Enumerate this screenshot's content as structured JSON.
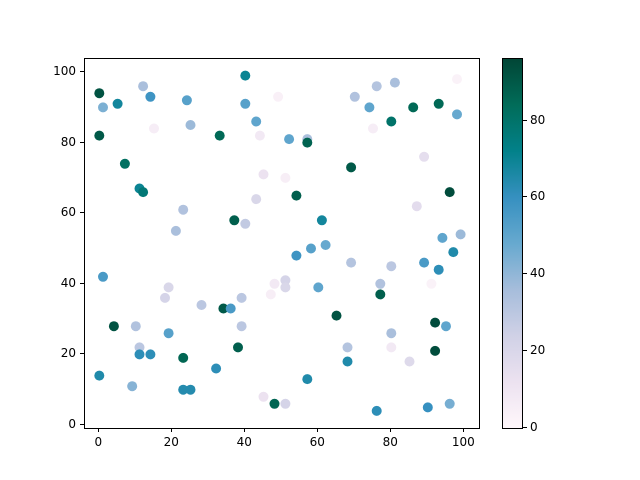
{
  "chart_data": {
    "type": "scatter",
    "title": "",
    "xlabel": "",
    "ylabel": "",
    "grid": false,
    "xlim": [
      -3.92,
      104.04
    ],
    "ylim": [
      -0.85,
      103.7
    ],
    "x_ticks": [
      0,
      20,
      40,
      60,
      80,
      100
    ],
    "y_ticks": [
      0,
      20,
      40,
      60,
      80,
      100
    ],
    "marker_diameter_px": 10,
    "colormap": {
      "name": "PuBuGn",
      "stops": [
        "#fff7fb",
        "#ece2f0",
        "#d0d1e6",
        "#a6bddb",
        "#67a9cf",
        "#3690c0",
        "#02818a",
        "#016c59",
        "#014636"
      ]
    },
    "colorbar": {
      "vmin": 0,
      "vmax": 96,
      "ticks": [
        0,
        20,
        40,
        60,
        80
      ],
      "position": "right"
    },
    "points": [
      [
        0,
        94,
        92
      ],
      [
        1,
        90,
        44
      ],
      [
        5,
        91,
        68
      ],
      [
        12,
        96,
        35
      ],
      [
        14,
        93,
        58
      ],
      [
        24,
        92,
        52
      ],
      [
        0,
        82,
        90
      ],
      [
        25,
        85,
        38
      ],
      [
        15,
        84,
        6
      ],
      [
        33,
        82,
        85
      ],
      [
        7,
        74,
        82
      ],
      [
        11,
        67,
        70
      ],
      [
        12,
        66,
        77
      ],
      [
        23,
        61,
        33
      ],
      [
        21,
        55,
        35
      ],
      [
        40,
        99,
        70
      ],
      [
        40,
        91,
        52
      ],
      [
        49,
        93,
        4
      ],
      [
        43,
        86,
        50
      ],
      [
        44,
        82,
        8
      ],
      [
        52,
        81,
        50
      ],
      [
        57,
        81,
        35
      ],
      [
        57,
        80,
        87
      ],
      [
        45,
        71,
        12
      ],
      [
        51,
        70,
        5
      ],
      [
        76,
        96,
        32
      ],
      [
        81,
        97,
        35
      ],
      [
        70,
        93,
        33
      ],
      [
        74,
        90,
        50
      ],
      [
        86,
        90,
        85
      ],
      [
        93,
        91,
        85
      ],
      [
        98,
        98,
        3
      ],
      [
        98,
        88,
        48
      ],
      [
        80,
        86,
        80
      ],
      [
        75,
        84,
        6
      ],
      [
        89,
        76,
        15
      ],
      [
        69,
        73,
        90
      ],
      [
        1,
        42,
        55
      ],
      [
        19,
        39,
        20
      ],
      [
        18,
        36,
        22
      ],
      [
        28,
        34,
        30
      ],
      [
        43,
        64,
        20
      ],
      [
        54,
        65,
        88
      ],
      [
        37,
        58,
        88
      ],
      [
        40,
        57,
        28
      ],
      [
        61,
        58,
        68
      ],
      [
        58,
        50,
        52
      ],
      [
        62,
        51,
        48
      ],
      [
        54,
        48,
        58
      ],
      [
        51,
        41,
        22
      ],
      [
        48,
        40,
        8
      ],
      [
        51,
        39,
        20
      ],
      [
        47,
        37,
        5
      ],
      [
        60,
        39,
        50
      ],
      [
        39,
        36,
        30
      ],
      [
        96,
        66,
        94
      ],
      [
        87,
        62,
        16
      ],
      [
        94,
        53,
        50
      ],
      [
        99,
        54,
        38
      ],
      [
        97,
        49,
        65
      ],
      [
        89,
        46,
        55
      ],
      [
        93,
        44,
        62
      ],
      [
        69,
        46,
        32
      ],
      [
        80,
        45,
        30
      ],
      [
        91,
        40,
        3
      ],
      [
        77,
        40,
        33
      ],
      [
        77,
        37,
        88
      ],
      [
        4,
        28,
        92
      ],
      [
        10,
        28,
        33
      ],
      [
        19,
        26,
        52
      ],
      [
        11,
        22,
        30
      ],
      [
        11,
        20,
        62
      ],
      [
        14,
        20,
        62
      ],
      [
        23,
        19,
        86
      ],
      [
        0,
        14,
        65
      ],
      [
        9,
        11,
        42
      ],
      [
        23,
        10,
        64
      ],
      [
        25,
        10,
        64
      ],
      [
        34,
        33,
        90
      ],
      [
        36,
        33,
        55
      ],
      [
        39,
        28,
        30
      ],
      [
        65,
        31,
        92
      ],
      [
        38,
        22,
        88
      ],
      [
        32,
        16,
        62
      ],
      [
        57,
        13,
        65
      ],
      [
        45,
        8,
        12
      ],
      [
        48,
        6,
        86
      ],
      [
        51,
        6,
        22
      ],
      [
        95,
        28,
        50
      ],
      [
        92,
        29,
        94
      ],
      [
        80,
        26,
        35
      ],
      [
        68,
        22,
        32
      ],
      [
        68,
        18,
        65
      ],
      [
        80,
        22,
        8
      ],
      [
        92,
        21,
        94
      ],
      [
        85,
        18,
        18
      ],
      [
        76,
        4,
        62
      ],
      [
        90,
        5,
        60
      ],
      [
        96,
        6,
        45
      ]
    ]
  }
}
